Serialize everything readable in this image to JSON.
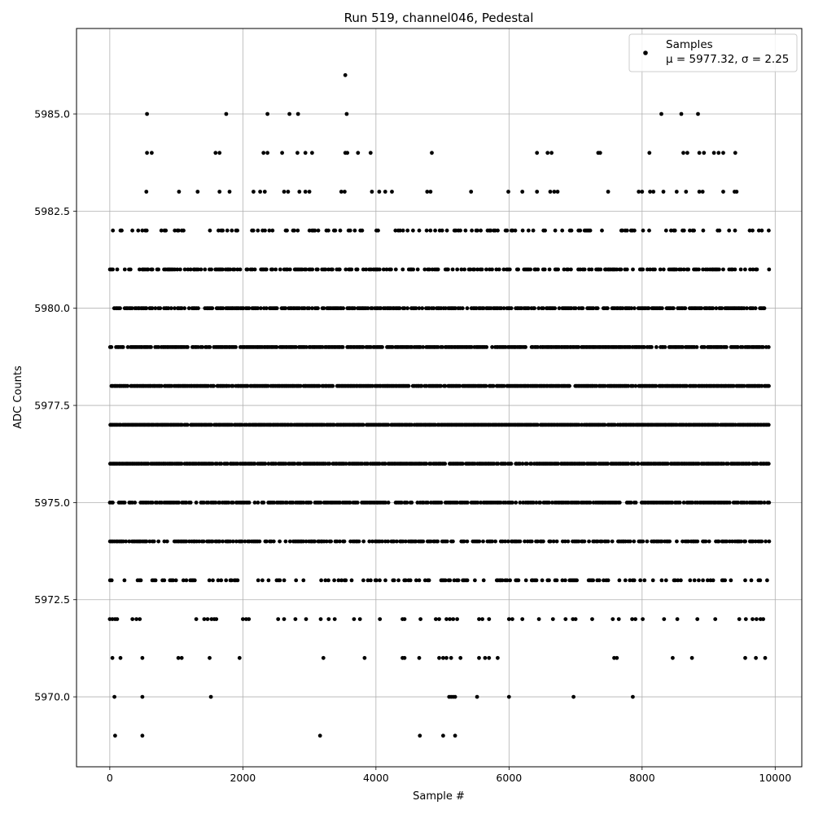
{
  "chart_data": {
    "type": "scatter",
    "title": "Run 519, channel046, Pedestal",
    "xlabel": "Sample #",
    "ylabel": "ADC Counts",
    "xlim": [
      -500,
      10400
    ],
    "ylim": [
      5968.2,
      5987.2
    ],
    "xticks": [
      0,
      2000,
      4000,
      6000,
      8000,
      10000
    ],
    "yticks": [
      5970.0,
      5972.5,
      5975.0,
      5977.5,
      5980.0,
      5982.5,
      5985.0
    ],
    "xtick_labels": [
      "0",
      "2000",
      "4000",
      "6000",
      "8000",
      "10000"
    ],
    "ytick_labels": [
      "5970.0",
      "5972.5",
      "5975.0",
      "5977.5",
      "5980.0",
      "5982.5",
      "5985.0"
    ],
    "grid": true,
    "legend_position": "top-right",
    "marker_color": "#000000",
    "series": [
      {
        "name": "Samples",
        "stats_label": "μ = 5977.32, σ = 2.25",
        "x_range": [
          0,
          9920
        ],
        "count": 9920,
        "dense_levels": [
          5973,
          5974,
          5975,
          5976,
          5977,
          5978,
          5979,
          5980,
          5981,
          5982
        ],
        "sparse_points": {
          "5969": [
            80,
            490,
            3160,
            4660,
            5010,
            5190
          ],
          "5970": [
            70,
            490,
            1520,
            5100,
            5130,
            5160,
            5190,
            5520,
            6000,
            6970,
            7860
          ],
          "5971": [
            40,
            160,
            490,
            1030,
            1080,
            1500,
            1950,
            3210,
            3830,
            4400,
            4430,
            4650,
            4950,
            5010,
            5060,
            5130,
            5270,
            5550,
            5640,
            5700,
            5830,
            7580,
            7620,
            8460,
            8750,
            9550,
            9710,
            9850
          ],
          "5972": [
            0,
            40,
            80,
            110,
            340,
            400,
            450,
            1300,
            1420,
            1470,
            1530,
            1570,
            1600,
            2000,
            2050,
            2090,
            2530,
            2620,
            2790,
            2950,
            3170,
            3290,
            3380,
            3670,
            3760,
            4060,
            4400,
            4430,
            4670,
            4900,
            4950,
            5060,
            5110,
            5160,
            5220,
            5550,
            5600,
            5700,
            6000,
            6050,
            6200,
            6450,
            6660,
            6850,
            6960,
            7000,
            7250,
            7560,
            7650,
            7850,
            7900,
            8010,
            8330,
            8530,
            8830,
            9100,
            9460,
            9560,
            9660,
            9720,
            9780,
            9820
          ],
          "5983": [
            550,
            1040,
            1320,
            1650,
            1800,
            2160,
            2260,
            2330,
            2620,
            2680,
            2850,
            2940,
            3000,
            3480,
            3530,
            3940,
            4050,
            4140,
            4240,
            4770,
            4820,
            5430,
            5990,
            6200,
            6420,
            6620,
            6680,
            6730,
            7490,
            7950,
            8000,
            8120,
            8170,
            8320,
            8520,
            8660,
            8860,
            8910,
            9220,
            9390,
            9420
          ],
          "5984": [
            560,
            630,
            1590,
            1650,
            2310,
            2370,
            2590,
            2820,
            2940,
            3040,
            3540,
            3570,
            3730,
            3920,
            4840,
            6420,
            6580,
            6640,
            7340,
            7370,
            8110,
            8620,
            8680,
            8860,
            8930,
            9080,
            9150,
            9220,
            9400
          ],
          "5985": [
            560,
            1750,
            2370,
            2700,
            2830,
            3560,
            8290,
            8590,
            8840
          ],
          "5986": [
            3540
          ]
        }
      }
    ]
  }
}
